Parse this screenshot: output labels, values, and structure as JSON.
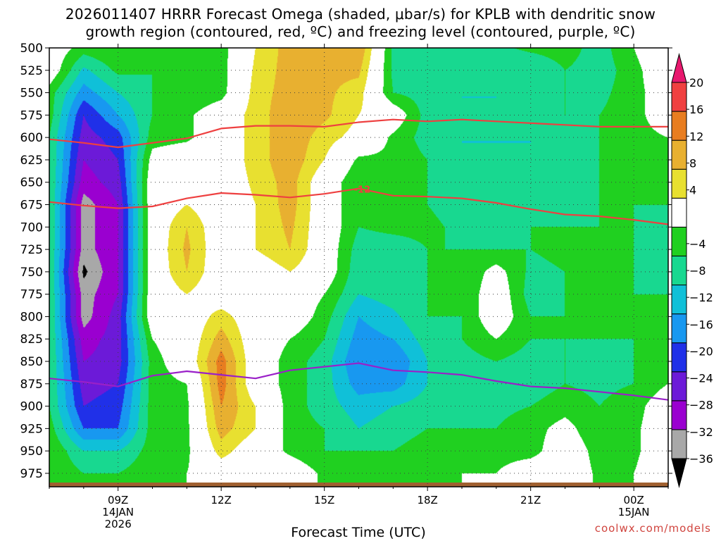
{
  "chart_data": {
    "type": "heatmap",
    "title_line1": "2026011407 HRRR Forecast Omega (shaded, μbar/s) for KPLB with dendritic snow",
    "title_line2": "growth region (contoured, red, ºC) and freezing level (contoured, purple, ºC)",
    "xlabel": "Forecast Time (UTC)",
    "ylabel": "",
    "credit": "coolwx.com/models",
    "x_hours": [
      7,
      8,
      9,
      10,
      11,
      12,
      13,
      14,
      15,
      16,
      17,
      18,
      19,
      20,
      21,
      22,
      23,
      24,
      25
    ],
    "xlim": [
      7,
      25
    ],
    "x_ticks": [
      {
        "hour": 9,
        "lines": [
          "09Z",
          "14JAN",
          "2026"
        ]
      },
      {
        "hour": 12,
        "lines": [
          "12Z"
        ]
      },
      {
        "hour": 15,
        "lines": [
          "15Z"
        ]
      },
      {
        "hour": 18,
        "lines": [
          "18Z"
        ]
      },
      {
        "hour": 21,
        "lines": [
          "21Z"
        ]
      },
      {
        "hour": 24,
        "lines": [
          "00Z",
          "15JAN"
        ]
      }
    ],
    "y_levels": [
      500,
      525,
      550,
      575,
      600,
      625,
      650,
      675,
      700,
      725,
      750,
      775,
      800,
      825,
      850,
      875,
      900,
      925,
      950,
      975
    ],
    "ylim": [
      500,
      990
    ],
    "y_reversed": true,
    "grid": true,
    "colorbar": {
      "ticks": [
        20,
        16,
        12,
        8,
        4,
        -4,
        -8,
        -12,
        -16,
        -20,
        -24,
        -28,
        -32,
        -36
      ],
      "bins": [
        {
          "min": -40,
          "max": -36,
          "color": "#000000"
        },
        {
          "min": -36,
          "max": -32,
          "color": "#a8a8a8"
        },
        {
          "min": -32,
          "max": -28,
          "color": "#9a00d0"
        },
        {
          "min": -28,
          "max": -24,
          "color": "#6c1ad8"
        },
        {
          "min": -24,
          "max": -20,
          "color": "#2030e8"
        },
        {
          "min": -20,
          "max": -16,
          "color": "#1898f0"
        },
        {
          "min": -16,
          "max": -12,
          "color": "#10c0d8"
        },
        {
          "min": -12,
          "max": -8,
          "color": "#18d890"
        },
        {
          "min": -8,
          "max": -4,
          "color": "#20d020"
        },
        {
          "min": -4,
          "max": 4,
          "color": "#ffffff"
        },
        {
          "min": 4,
          "max": 8,
          "color": "#e8e030"
        },
        {
          "min": 8,
          "max": 12,
          "color": "#e8b030"
        },
        {
          "min": 12,
          "max": 16,
          "color": "#e87d20"
        },
        {
          "min": 16,
          "max": 20,
          "color": "#f04040"
        },
        {
          "min": 20,
          "max": 24,
          "color": "#e8186e"
        }
      ]
    },
    "omega": [
      [
        0,
        -6,
        -4,
        -6,
        -8,
        -6,
        4,
        10,
        12,
        12,
        -9,
        -10,
        -9,
        -9,
        -7,
        -6,
        -10,
        -4,
        4
      ],
      [
        0,
        -13,
        -7,
        -8,
        -8,
        -6,
        5,
        10,
        9,
        9,
        -9,
        -10,
        -11,
        -11,
        -12,
        -8,
        -10,
        -6,
        2
      ],
      [
        -6,
        -18,
        -12,
        -8,
        -8,
        -6,
        6,
        10,
        9,
        6,
        -8,
        -10,
        -12,
        -12,
        -12,
        -8,
        -9,
        -6,
        0
      ],
      [
        -6,
        -24,
        -16,
        -8,
        -5,
        0,
        6,
        11,
        9,
        4,
        0,
        -10,
        -12,
        -12,
        -11,
        -8,
        -8,
        -6,
        0
      ],
      [
        -8,
        -26,
        -22,
        -6,
        -5,
        0,
        6,
        11,
        6,
        2,
        -5,
        -10,
        -12,
        -12,
        -12,
        -10,
        -8,
        -6,
        -4
      ],
      [
        -8,
        -28,
        -24,
        -2,
        0,
        0,
        6,
        11,
        4,
        -5,
        -5,
        -8,
        -12,
        -12,
        -12,
        -10,
        -8,
        -6,
        -5
      ],
      [
        -8,
        -30,
        -26,
        0,
        0,
        0,
        5,
        10,
        0,
        -8,
        -5,
        -8,
        -10,
        -11,
        -10,
        -10,
        -8,
        -8,
        -6
      ],
      [
        -8,
        -34,
        -28,
        0,
        4,
        0,
        4,
        10,
        0,
        -8,
        -8,
        -8,
        -10,
        -9,
        -9,
        -9,
        -8,
        -8,
        -8
      ],
      [
        -8,
        -34,
        -28,
        0,
        8,
        0,
        4,
        9,
        0,
        -8,
        -7,
        -7,
        -9,
        -9,
        -8,
        -8,
        -8,
        -8,
        -9
      ],
      [
        -8,
        -34,
        -28,
        0,
        9,
        0,
        4,
        8,
        0,
        -10,
        -10,
        -8,
        -8,
        -8,
        -8,
        -7,
        -8,
        -8,
        -10
      ],
      [
        -8,
        -37,
        -28,
        0,
        8,
        0,
        0,
        4,
        0,
        -11,
        -10,
        -8,
        -8,
        -2,
        -9,
        -8,
        -8,
        -8,
        -9
      ],
      [
        -8,
        -34,
        -28,
        0,
        4,
        0,
        0,
        0,
        -4,
        -12,
        -10,
        -8,
        -8,
        0,
        -10,
        -8,
        -8,
        -8,
        -8
      ],
      [
        -8,
        -34,
        -26,
        0,
        0,
        6,
        0,
        0,
        -6,
        -16,
        -13,
        -8,
        -8,
        0,
        -8,
        -8,
        -8,
        -8,
        -6
      ],
      [
        -8,
        -30,
        -26,
        -4,
        0,
        10,
        0,
        -4,
        -8,
        -18,
        -16,
        -10,
        -8,
        -4,
        -8,
        -8,
        -8,
        -8,
        -5
      ],
      [
        -8,
        -28,
        -26,
        -6,
        0,
        14,
        0,
        -6,
        -10,
        -20,
        -20,
        -12,
        -10,
        -8,
        -10,
        -8,
        -9,
        -8,
        -4
      ],
      [
        -8,
        -26,
        -24,
        -6,
        -4,
        14,
        0,
        -6,
        -10,
        -18,
        -18,
        -12,
        -10,
        -10,
        -10,
        -8,
        -9,
        -8,
        -4
      ],
      [
        -8,
        -24,
        -22,
        -6,
        -5,
        12,
        4,
        -6,
        -10,
        -14,
        -12,
        -10,
        -10,
        -9,
        -8,
        -6,
        -8,
        -6,
        0
      ],
      [
        -6,
        -20,
        -20,
        -6,
        -5,
        10,
        4,
        -6,
        -8,
        -12,
        -10,
        -8,
        -8,
        -8,
        -6,
        -2,
        -8,
        -5,
        0
      ],
      [
        -4,
        -12,
        -12,
        -6,
        -5,
        6,
        0,
        -5,
        -8,
        -8,
        -8,
        -6,
        -6,
        -6,
        -6,
        0,
        -6,
        -5,
        0
      ],
      [
        -4,
        -8,
        -8,
        -5,
        -4,
        0,
        0,
        0,
        -5,
        -5,
        -5,
        -5,
        -4,
        -4,
        0,
        0,
        -5,
        -4,
        0
      ]
    ],
    "dgz_contours": [
      {
        "name": "top",
        "color": "#ee4040",
        "points": [
          [
            7,
            602
          ],
          [
            8,
            606
          ],
          [
            9,
            611
          ],
          [
            10,
            606
          ],
          [
            11,
            601
          ],
          [
            12,
            590
          ],
          [
            13,
            587
          ],
          [
            14,
            587
          ],
          [
            15,
            588
          ],
          [
            16,
            583
          ],
          [
            17,
            580
          ],
          [
            18,
            582
          ],
          [
            19,
            580
          ],
          [
            20,
            582
          ],
          [
            21,
            584
          ],
          [
            22,
            586
          ],
          [
            23,
            588
          ],
          [
            24,
            588
          ],
          [
            25,
            588
          ]
        ]
      },
      {
        "name": "bottom",
        "color": "#ee4040",
        "label": "-12",
        "label_x": 16.1,
        "points": [
          [
            7,
            672
          ],
          [
            8,
            676
          ],
          [
            9,
            679
          ],
          [
            10,
            677
          ],
          [
            11,
            668
          ],
          [
            12,
            662
          ],
          [
            13,
            664
          ],
          [
            14,
            667
          ],
          [
            15,
            663
          ],
          [
            16,
            657
          ],
          [
            17,
            665
          ],
          [
            18,
            666
          ],
          [
            19,
            668
          ],
          [
            20,
            673
          ],
          [
            21,
            680
          ],
          [
            22,
            686
          ],
          [
            23,
            688
          ],
          [
            24,
            692
          ],
          [
            25,
            697
          ]
        ]
      }
    ],
    "freezing_level": {
      "color": "#9a20c8",
      "points": [
        [
          7,
          869
        ],
        [
          8,
          873
        ],
        [
          9,
          878
        ],
        [
          10,
          866
        ],
        [
          11,
          861
        ],
        [
          12,
          865
        ],
        [
          13,
          869
        ],
        [
          14,
          860
        ],
        [
          15,
          856
        ],
        [
          16,
          852
        ],
        [
          17,
          860
        ],
        [
          18,
          862
        ],
        [
          19,
          865
        ],
        [
          20,
          872
        ],
        [
          21,
          878
        ],
        [
          22,
          880
        ],
        [
          23,
          884
        ],
        [
          24,
          888
        ],
        [
          25,
          893
        ]
      ]
    },
    "terrain_color": "#a06030"
  }
}
